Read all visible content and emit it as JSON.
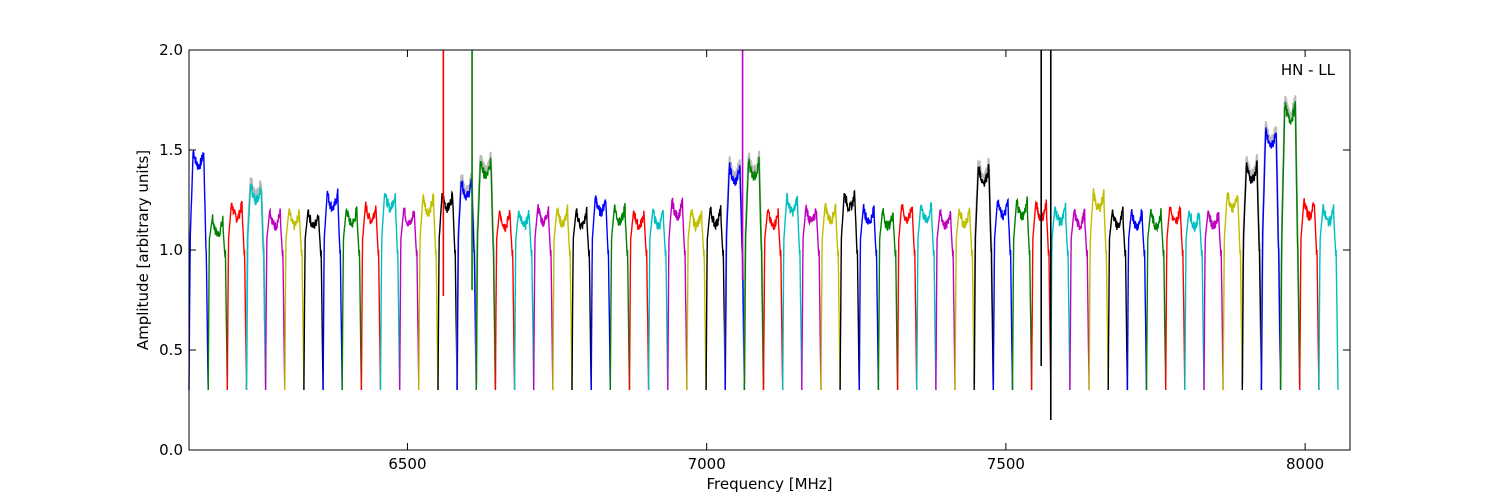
{
  "chart_data": {
    "type": "line",
    "title": "",
    "xlabel": "Frequency [MHz]",
    "ylabel": "Amplitude [arbitrary units]",
    "xlim": [
      6135,
      8075
    ],
    "ylim": [
      0.0,
      2.0
    ],
    "xticks": [
      6500,
      7000,
      7500,
      8000
    ],
    "xtick_labels": [
      "6500",
      "7000",
      "7500",
      "8000"
    ],
    "yticks": [
      0.0,
      0.5,
      1.0,
      1.5,
      2.0
    ],
    "ytick_labels": [
      "0.0",
      "0.5",
      "1.0",
      "1.5",
      "2.0"
    ],
    "grid": false,
    "legend": "none",
    "annotation": "HN - LL",
    "color_cycle": [
      "#0000ff",
      "#008000",
      "#ff0000",
      "#00bfbf",
      "#bf00bf",
      "#bfbf00",
      "#000000"
    ],
    "reference_color": "#bbbbbb",
    "channel_width_mhz": 32,
    "num_channels": 60,
    "start_freq": 6135,
    "channel_peaks": [
      1.5,
      1.16,
      1.24,
      1.33,
      1.2,
      1.2,
      1.2,
      1.29,
      1.21,
      1.23,
      1.29,
      1.21,
      1.27,
      1.29,
      1.35,
      1.45,
      1.2,
      1.2,
      1.22,
      1.21,
      1.2,
      1.27,
      1.22,
      1.2,
      1.2,
      1.25,
      1.2,
      1.21,
      1.42,
      1.45,
      1.2,
      1.27,
      1.22,
      1.23,
      1.29,
      1.22,
      1.2,
      1.23,
      1.23,
      1.2,
      1.21,
      1.42,
      1.25,
      1.25,
      1.24,
      1.22,
      1.2,
      1.29,
      1.2,
      1.2,
      1.2,
      1.22,
      1.2,
      1.2,
      1.29,
      1.43,
      1.6,
      1.73,
      1.25,
      1.22
    ],
    "spikes": [
      {
        "x": 6560,
        "ymin": 0.77,
        "ymax": 2.0,
        "color": "#ff0000"
      },
      {
        "x": 6608,
        "ymin": 0.8,
        "ymax": 2.0,
        "color": "#008000"
      },
      {
        "x": 7060,
        "ymin": 0.85,
        "ymax": 2.0,
        "color": "#bf00bf"
      },
      {
        "x": 7559,
        "ymin": 0.42,
        "ymax": 2.0,
        "color": "#000000"
      },
      {
        "x": 7575,
        "ymin": 0.15,
        "ymax": 2.0,
        "color": "#000000"
      }
    ]
  }
}
